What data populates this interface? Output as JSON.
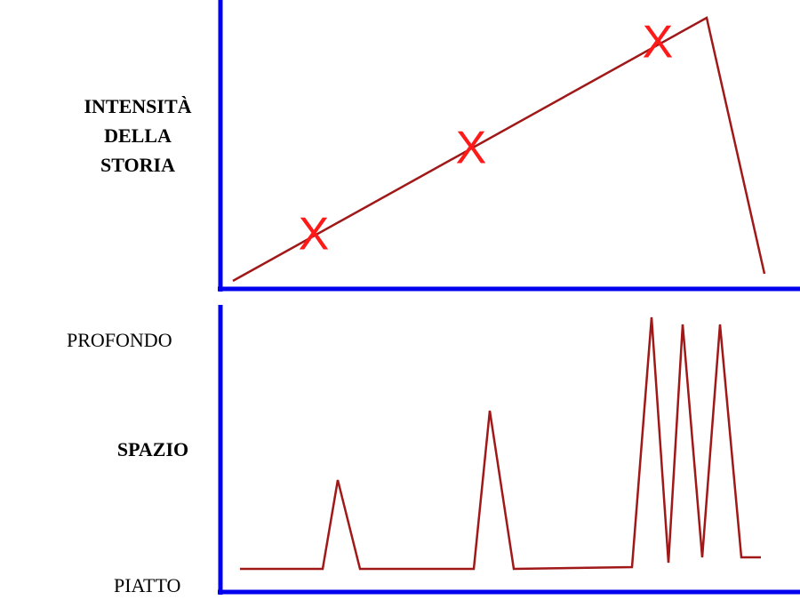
{
  "top_panel": {
    "label_lines": [
      "INTENSITÀ",
      "DELLA",
      "STORIA"
    ],
    "markers": [
      "X",
      "X",
      "X"
    ]
  },
  "bottom_panel": {
    "label": "SPAZIO",
    "top_label": "PROFONDO",
    "bottom_label": "PIATTO"
  }
}
